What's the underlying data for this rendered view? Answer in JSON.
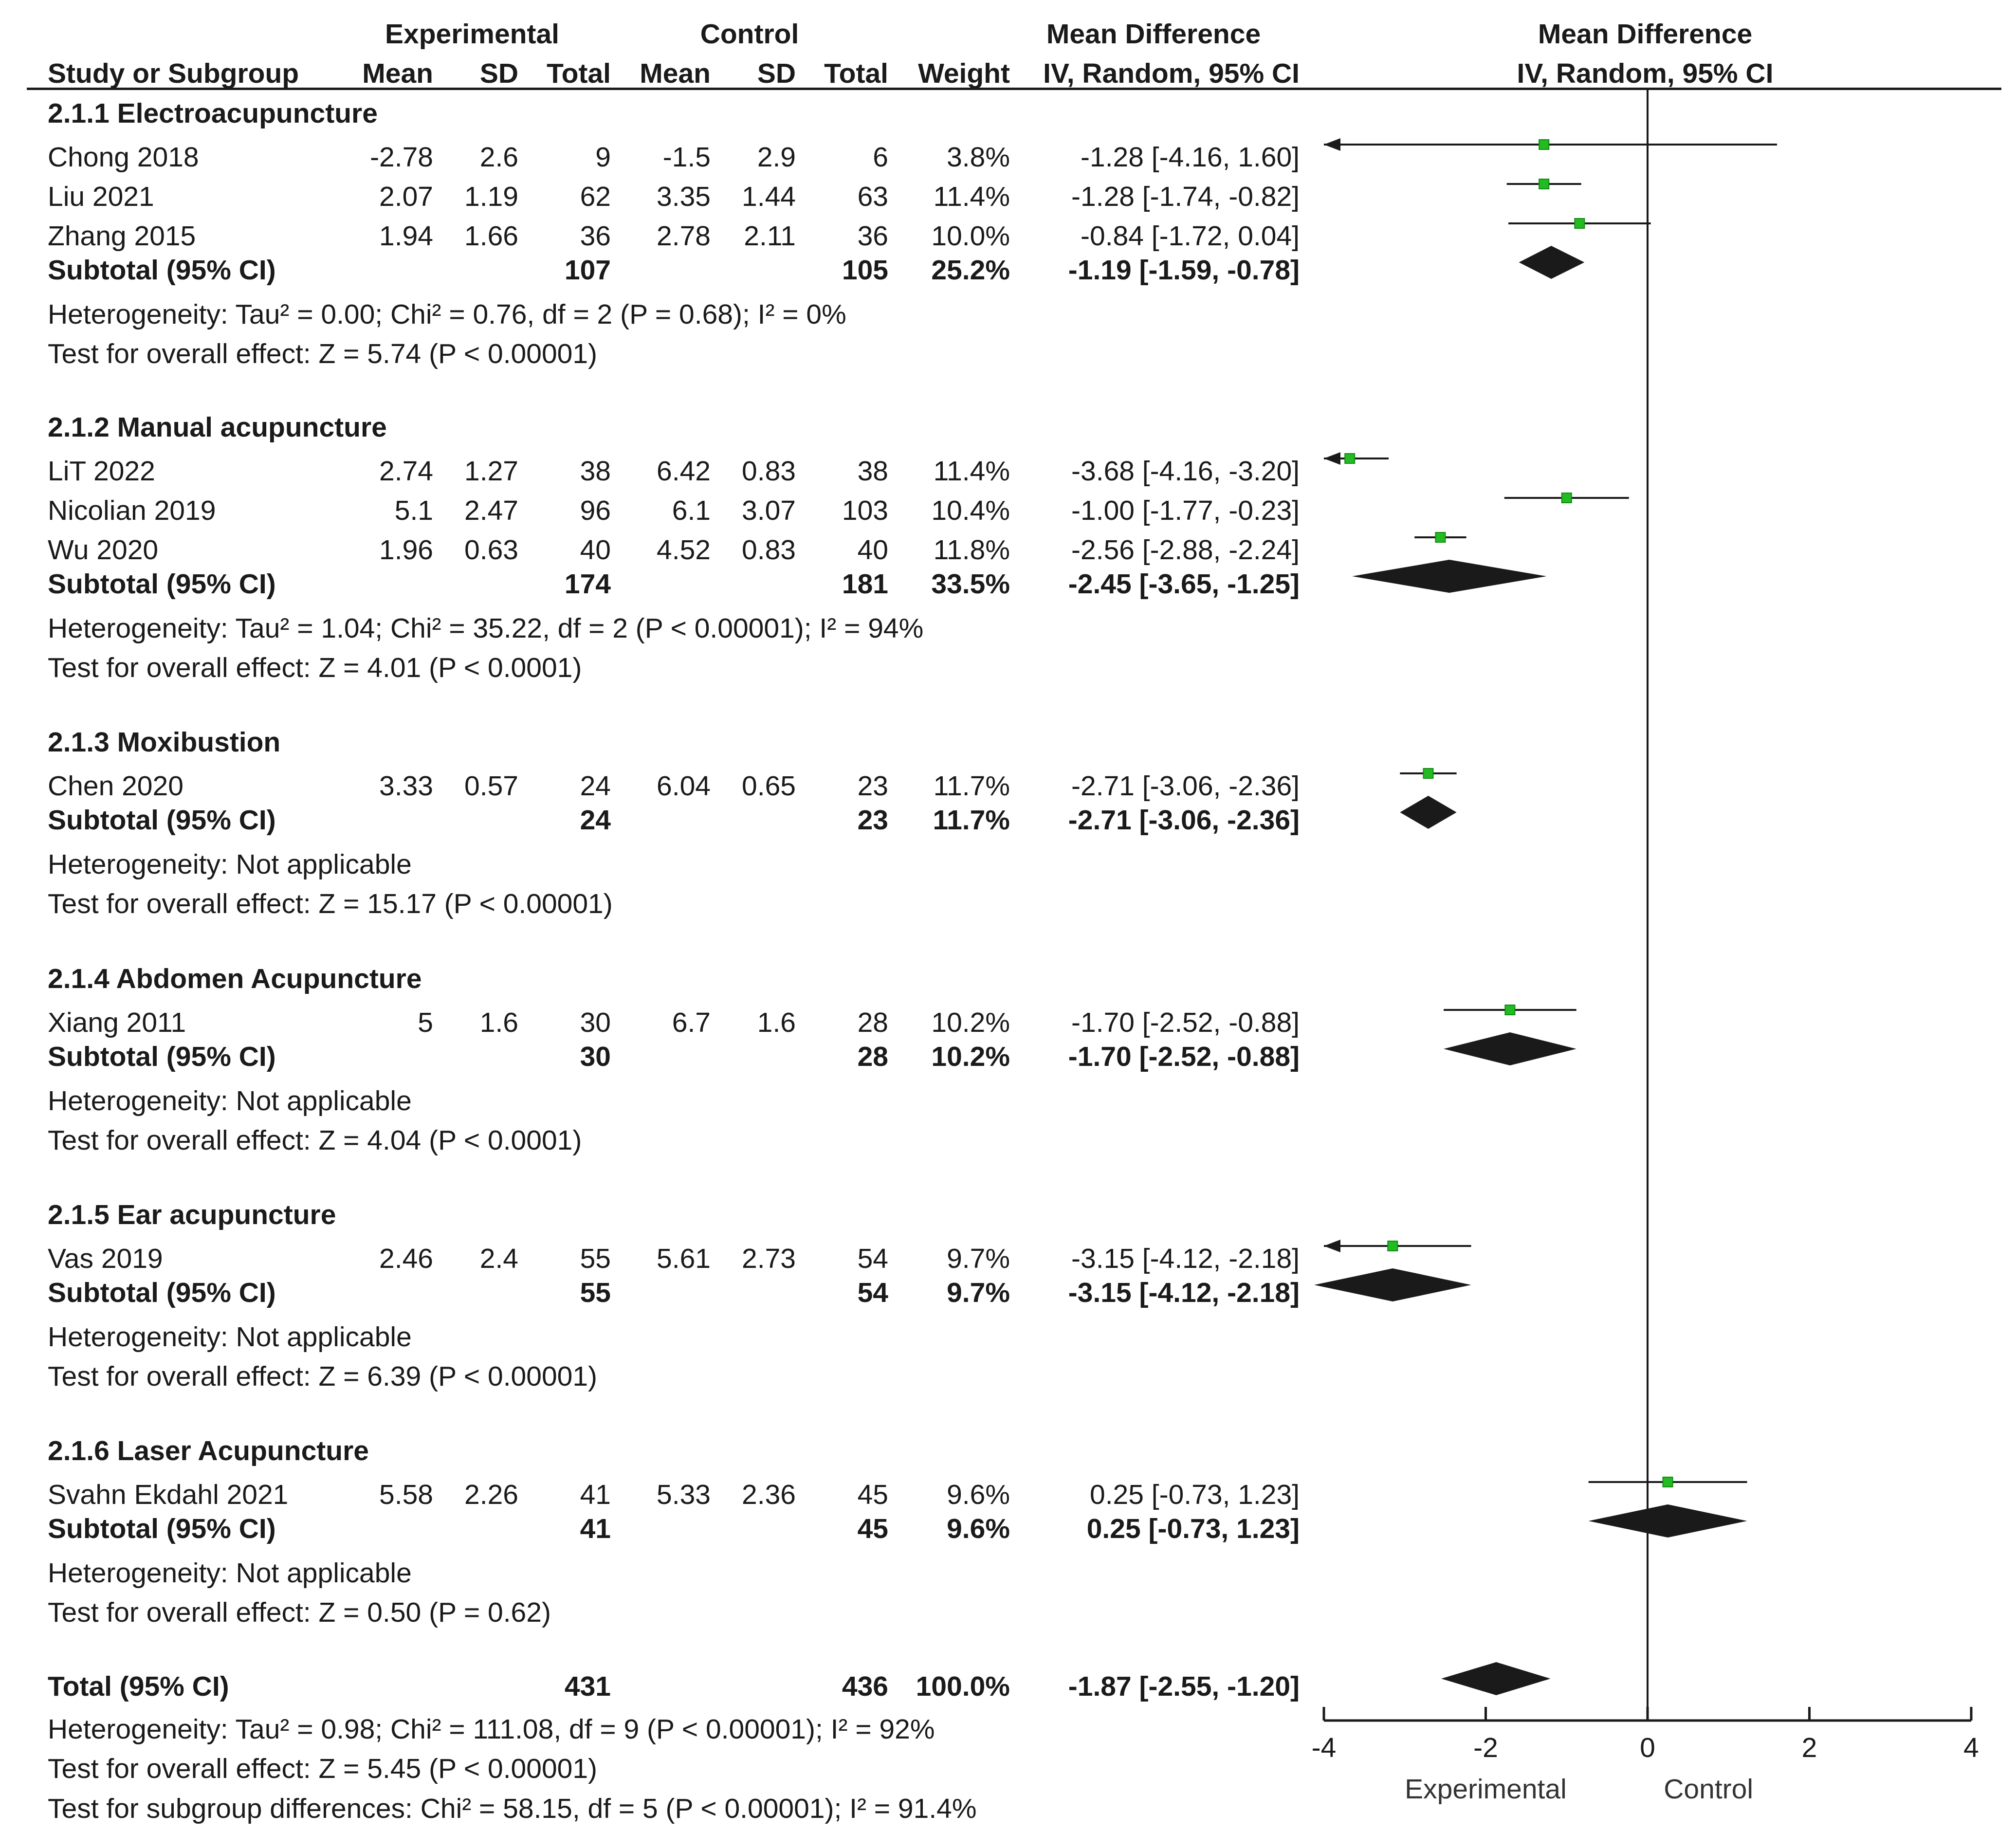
{
  "header": {
    "experimental": "Experimental",
    "control": "Control",
    "mean_difference": "Mean Difference",
    "study_or_subgroup": "Study or Subgroup",
    "mean": "Mean",
    "sd": "SD",
    "total": "Total",
    "weight": "Weight",
    "iv_random": "IV, Random, 95% CI",
    "plot_title": "Mean Difference",
    "plot_subtitle": "IV, Random, 95% CI"
  },
  "subgroups": [
    {
      "title": "2.1.1 Electroacupuncture",
      "studies": [
        {
          "name": "Chong 2018",
          "e_mean": "-2.78",
          "e_sd": "2.6",
          "e_total": "9",
          "c_mean": "-1.5",
          "c_sd": "2.9",
          "c_total": "6",
          "weight": "3.8%",
          "ci": "-1.28 [-4.16, 1.60]"
        },
        {
          "name": "Liu 2021",
          "e_mean": "2.07",
          "e_sd": "1.19",
          "e_total": "62",
          "c_mean": "3.35",
          "c_sd": "1.44",
          "c_total": "63",
          "weight": "11.4%",
          "ci": "-1.28 [-1.74, -0.82]"
        },
        {
          "name": "Zhang 2015",
          "e_mean": "1.94",
          "e_sd": "1.66",
          "e_total": "36",
          "c_mean": "2.78",
          "c_sd": "2.11",
          "c_total": "36",
          "weight": "10.0%",
          "ci": "-0.84 [-1.72, 0.04]"
        }
      ],
      "subtotal": {
        "label": "Subtotal (95% CI)",
        "e_total": "107",
        "c_total": "105",
        "weight": "25.2%",
        "ci": "-1.19 [-1.59, -0.78]"
      },
      "heterogeneity": "Heterogeneity: Tau² = 0.00; Chi² = 0.76, df = 2 (P = 0.68); I² = 0%",
      "overall": "Test for overall effect: Z = 5.74 (P < 0.00001)"
    },
    {
      "title": "2.1.2 Manual acupuncture",
      "studies": [
        {
          "name": "LiT 2022",
          "e_mean": "2.74",
          "e_sd": "1.27",
          "e_total": "38",
          "c_mean": "6.42",
          "c_sd": "0.83",
          "c_total": "38",
          "weight": "11.4%",
          "ci": "-3.68 [-4.16, -3.20]"
        },
        {
          "name": "Nicolian 2019",
          "e_mean": "5.1",
          "e_sd": "2.47",
          "e_total": "96",
          "c_mean": "6.1",
          "c_sd": "3.07",
          "c_total": "103",
          "weight": "10.4%",
          "ci": "-1.00 [-1.77, -0.23]"
        },
        {
          "name": "Wu 2020",
          "e_mean": "1.96",
          "e_sd": "0.63",
          "e_total": "40",
          "c_mean": "4.52",
          "c_sd": "0.83",
          "c_total": "40",
          "weight": "11.8%",
          "ci": "-2.56 [-2.88, -2.24]"
        }
      ],
      "subtotal": {
        "label": "Subtotal (95% CI)",
        "e_total": "174",
        "c_total": "181",
        "weight": "33.5%",
        "ci": "-2.45 [-3.65, -1.25]"
      },
      "heterogeneity": "Heterogeneity: Tau² = 1.04; Chi² = 35.22, df = 2 (P < 0.00001); I² = 94%",
      "overall": "Test for overall effect: Z = 4.01 (P < 0.0001)"
    },
    {
      "title": "2.1.3 Moxibustion",
      "studies": [
        {
          "name": "Chen 2020",
          "e_mean": "3.33",
          "e_sd": "0.57",
          "e_total": "24",
          "c_mean": "6.04",
          "c_sd": "0.65",
          "c_total": "23",
          "weight": "11.7%",
          "ci": "-2.71 [-3.06, -2.36]"
        }
      ],
      "subtotal": {
        "label": "Subtotal (95% CI)",
        "e_total": "24",
        "c_total": "23",
        "weight": "11.7%",
        "ci": "-2.71 [-3.06, -2.36]"
      },
      "heterogeneity": "Heterogeneity: Not applicable",
      "overall": "Test for overall effect: Z = 15.17 (P < 0.00001)"
    },
    {
      "title": "2.1.4 Abdomen Acupuncture",
      "studies": [
        {
          "name": "Xiang 2011",
          "e_mean": "5",
          "e_sd": "1.6",
          "e_total": "30",
          "c_mean": "6.7",
          "c_sd": "1.6",
          "c_total": "28",
          "weight": "10.2%",
          "ci": "-1.70 [-2.52, -0.88]"
        }
      ],
      "subtotal": {
        "label": "Subtotal (95% CI)",
        "e_total": "30",
        "c_total": "28",
        "weight": "10.2%",
        "ci": "-1.70 [-2.52, -0.88]"
      },
      "heterogeneity": "Heterogeneity: Not applicable",
      "overall": "Test for overall effect: Z = 4.04 (P < 0.0001)"
    },
    {
      "title": "2.1.5 Ear acupuncture",
      "studies": [
        {
          "name": "Vas 2019",
          "e_mean": "2.46",
          "e_sd": "2.4",
          "e_total": "55",
          "c_mean": "5.61",
          "c_sd": "2.73",
          "c_total": "54",
          "weight": "9.7%",
          "ci": "-3.15 [-4.12, -2.18]"
        }
      ],
      "subtotal": {
        "label": "Subtotal (95% CI)",
        "e_total": "55",
        "c_total": "54",
        "weight": "9.7%",
        "ci": "-3.15 [-4.12, -2.18]"
      },
      "heterogeneity": "Heterogeneity: Not applicable",
      "overall": "Test for overall effect: Z = 6.39 (P < 0.00001)"
    },
    {
      "title": "2.1.6 Laser Acupuncture",
      "studies": [
        {
          "name": "Svahn Ekdahl 2021",
          "e_mean": "5.58",
          "e_sd": "2.26",
          "e_total": "41",
          "c_mean": "5.33",
          "c_sd": "2.36",
          "c_total": "45",
          "weight": "9.6%",
          "ci": "0.25 [-0.73, 1.23]"
        }
      ],
      "subtotal": {
        "label": "Subtotal (95% CI)",
        "e_total": "41",
        "c_total": "45",
        "weight": "9.6%",
        "ci": "0.25 [-0.73, 1.23]"
      },
      "heterogeneity": "Heterogeneity: Not applicable",
      "overall": "Test for overall effect: Z = 0.50 (P = 0.62)"
    }
  ],
  "total": {
    "label": "Total (95% CI)",
    "e_total": "431",
    "c_total": "436",
    "weight": "100.0%",
    "ci": "-1.87 [-2.55, -1.20]",
    "heterogeneity": "Heterogeneity: Tau² = 0.98; Chi² = 111.08, df = 9 (P < 0.00001); I² = 92%",
    "overall": "Test for overall effect: Z = 5.45 (P < 0.00001)",
    "subgroup_diff": "Test for subgroup differences: Chi² = 58.15, df = 5 (P < 0.00001); I² = 91.4%"
  },
  "axis": {
    "ticks": [
      "-4",
      "-2",
      "0",
      "2",
      "4"
    ],
    "favours_left": "Experimental",
    "favours_right": "Control"
  },
  "colors": {
    "point": "#22bb22",
    "ink": "#1a1a1a"
  },
  "chart_data": {
    "type": "forest",
    "xlim": [
      -4,
      4
    ],
    "xticks": [
      -4,
      -2,
      0,
      2,
      4
    ],
    "reference_line": 0,
    "rows": [
      {
        "label": "Chong 2018",
        "kind": "study",
        "est": -1.28,
        "lo": -4.16,
        "hi": 1.6
      },
      {
        "label": "Liu 2021",
        "kind": "study",
        "est": -1.28,
        "lo": -1.74,
        "hi": -0.82
      },
      {
        "label": "Zhang 2015",
        "kind": "study",
        "est": -0.84,
        "lo": -1.72,
        "hi": 0.04
      },
      {
        "label": "Subtotal 2.1.1",
        "kind": "diamond",
        "est": -1.19,
        "lo": -1.59,
        "hi": -0.78
      },
      {
        "label": "LiT 2022",
        "kind": "study",
        "est": -3.68,
        "lo": -4.16,
        "hi": -3.2
      },
      {
        "label": "Nicolian 2019",
        "kind": "study",
        "est": -1.0,
        "lo": -1.77,
        "hi": -0.23
      },
      {
        "label": "Wu 2020",
        "kind": "study",
        "est": -2.56,
        "lo": -2.88,
        "hi": -2.24
      },
      {
        "label": "Subtotal 2.1.2",
        "kind": "diamond",
        "est": -2.45,
        "lo": -3.65,
        "hi": -1.25
      },
      {
        "label": "Chen 2020",
        "kind": "study",
        "est": -2.71,
        "lo": -3.06,
        "hi": -2.36
      },
      {
        "label": "Subtotal 2.1.3",
        "kind": "diamond",
        "est": -2.71,
        "lo": -3.06,
        "hi": -2.36
      },
      {
        "label": "Xiang 2011",
        "kind": "study",
        "est": -1.7,
        "lo": -2.52,
        "hi": -0.88
      },
      {
        "label": "Subtotal 2.1.4",
        "kind": "diamond",
        "est": -1.7,
        "lo": -2.52,
        "hi": -0.88
      },
      {
        "label": "Vas 2019",
        "kind": "study",
        "est": -3.15,
        "lo": -4.12,
        "hi": -2.18
      },
      {
        "label": "Subtotal 2.1.5",
        "kind": "diamond",
        "est": -3.15,
        "lo": -4.12,
        "hi": -2.18
      },
      {
        "label": "Svahn Ekdahl 2021",
        "kind": "study",
        "est": 0.25,
        "lo": -0.73,
        "hi": 1.23
      },
      {
        "label": "Subtotal 2.1.6",
        "kind": "diamond",
        "est": 0.25,
        "lo": -0.73,
        "hi": 1.23
      },
      {
        "label": "Total",
        "kind": "diamond",
        "est": -1.87,
        "lo": -2.55,
        "hi": -1.2
      }
    ]
  }
}
